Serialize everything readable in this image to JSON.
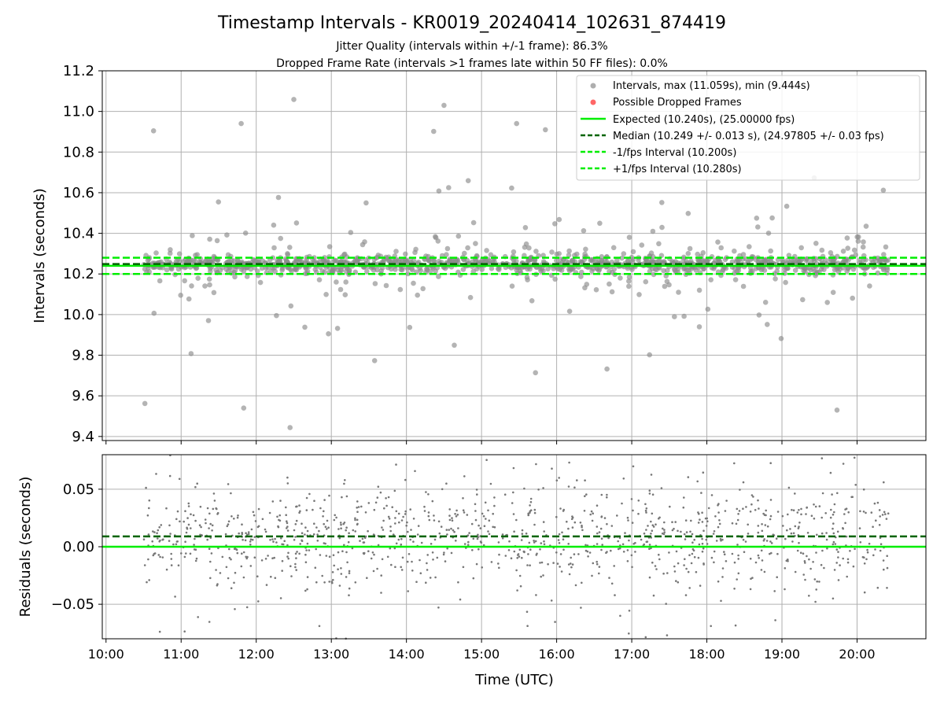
{
  "title": "Timestamp Intervals - KR0019_20240414_102631_874419",
  "subtitle1": "Jitter Quality (intervals within +/-1 frame): 86.3%",
  "subtitle2": "Dropped Frame Rate (intervals >1 frames late within 50 FF files): 0.0%",
  "colors": {
    "points": "#8c8c8c",
    "dropped": "#ff6666",
    "expected": "#00ee00",
    "median": "#006400",
    "grid": "#b0b0b0"
  },
  "chart_data": [
    {
      "type": "scatter",
      "ylabel": "Intervals (seconds)",
      "xlabel": "",
      "xlim": [
        "09:57",
        "20:55"
      ],
      "ylim": [
        9.38,
        11.2
      ],
      "y_ticks": [
        "9.4",
        "9.6",
        "9.8",
        "10.0",
        "10.2",
        "10.4",
        "10.6",
        "10.8",
        "11.0",
        "11.2"
      ],
      "grid": true,
      "legend_position": "top-right",
      "data_range_time": [
        "10:30",
        "20:25"
      ],
      "legend": [
        "Intervals, max (11.059s), min (9.444s)",
        "Possible Dropped Frames",
        "Expected (10.240s), (25.00000 fps)",
        "Median (10.249 +/- 0.013 s), (24.97805 +/- 0.03 fps)",
        "-1/fps Interval (10.200s)",
        "+1/fps Interval (10.280s)"
      ],
      "reference_lines": {
        "expected": 10.24,
        "median": 10.249,
        "minus_one_fps": 10.2,
        "plus_one_fps": 10.28
      },
      "series": [
        {
          "name": "Intervals",
          "marker": "circle",
          "notable_points": [
            {
              "x": "12:30",
              "y": 11.059
            },
            {
              "x": "12:27",
              "y": 9.444
            },
            {
              "x": "14:30",
              "y": 11.03
            },
            {
              "x": "11:48",
              "y": 10.94
            },
            {
              "x": "15:28",
              "y": 10.94
            },
            {
              "x": "15:51",
              "y": 10.91
            },
            {
              "x": "19:44",
              "y": 9.53
            },
            {
              "x": "11:50",
              "y": 9.54
            }
          ]
        },
        {
          "name": "Possible Dropped Frames",
          "values": []
        }
      ]
    },
    {
      "type": "scatter",
      "ylabel": "Residuals (seconds)",
      "xlabel": "Time (UTC)",
      "xlim": [
        "09:57",
        "20:55"
      ],
      "ylim": [
        -0.08,
        0.08
      ],
      "y_ticks": [
        "−0.05",
        "0.00",
        "0.05"
      ],
      "x_ticks": [
        "10:00",
        "11:00",
        "12:00",
        "13:00",
        "14:00",
        "15:00",
        "16:00",
        "17:00",
        "18:00",
        "19:00",
        "20:00"
      ],
      "grid": true,
      "reference_lines": {
        "zero": 0.0,
        "median_residual": 0.009
      }
    }
  ]
}
